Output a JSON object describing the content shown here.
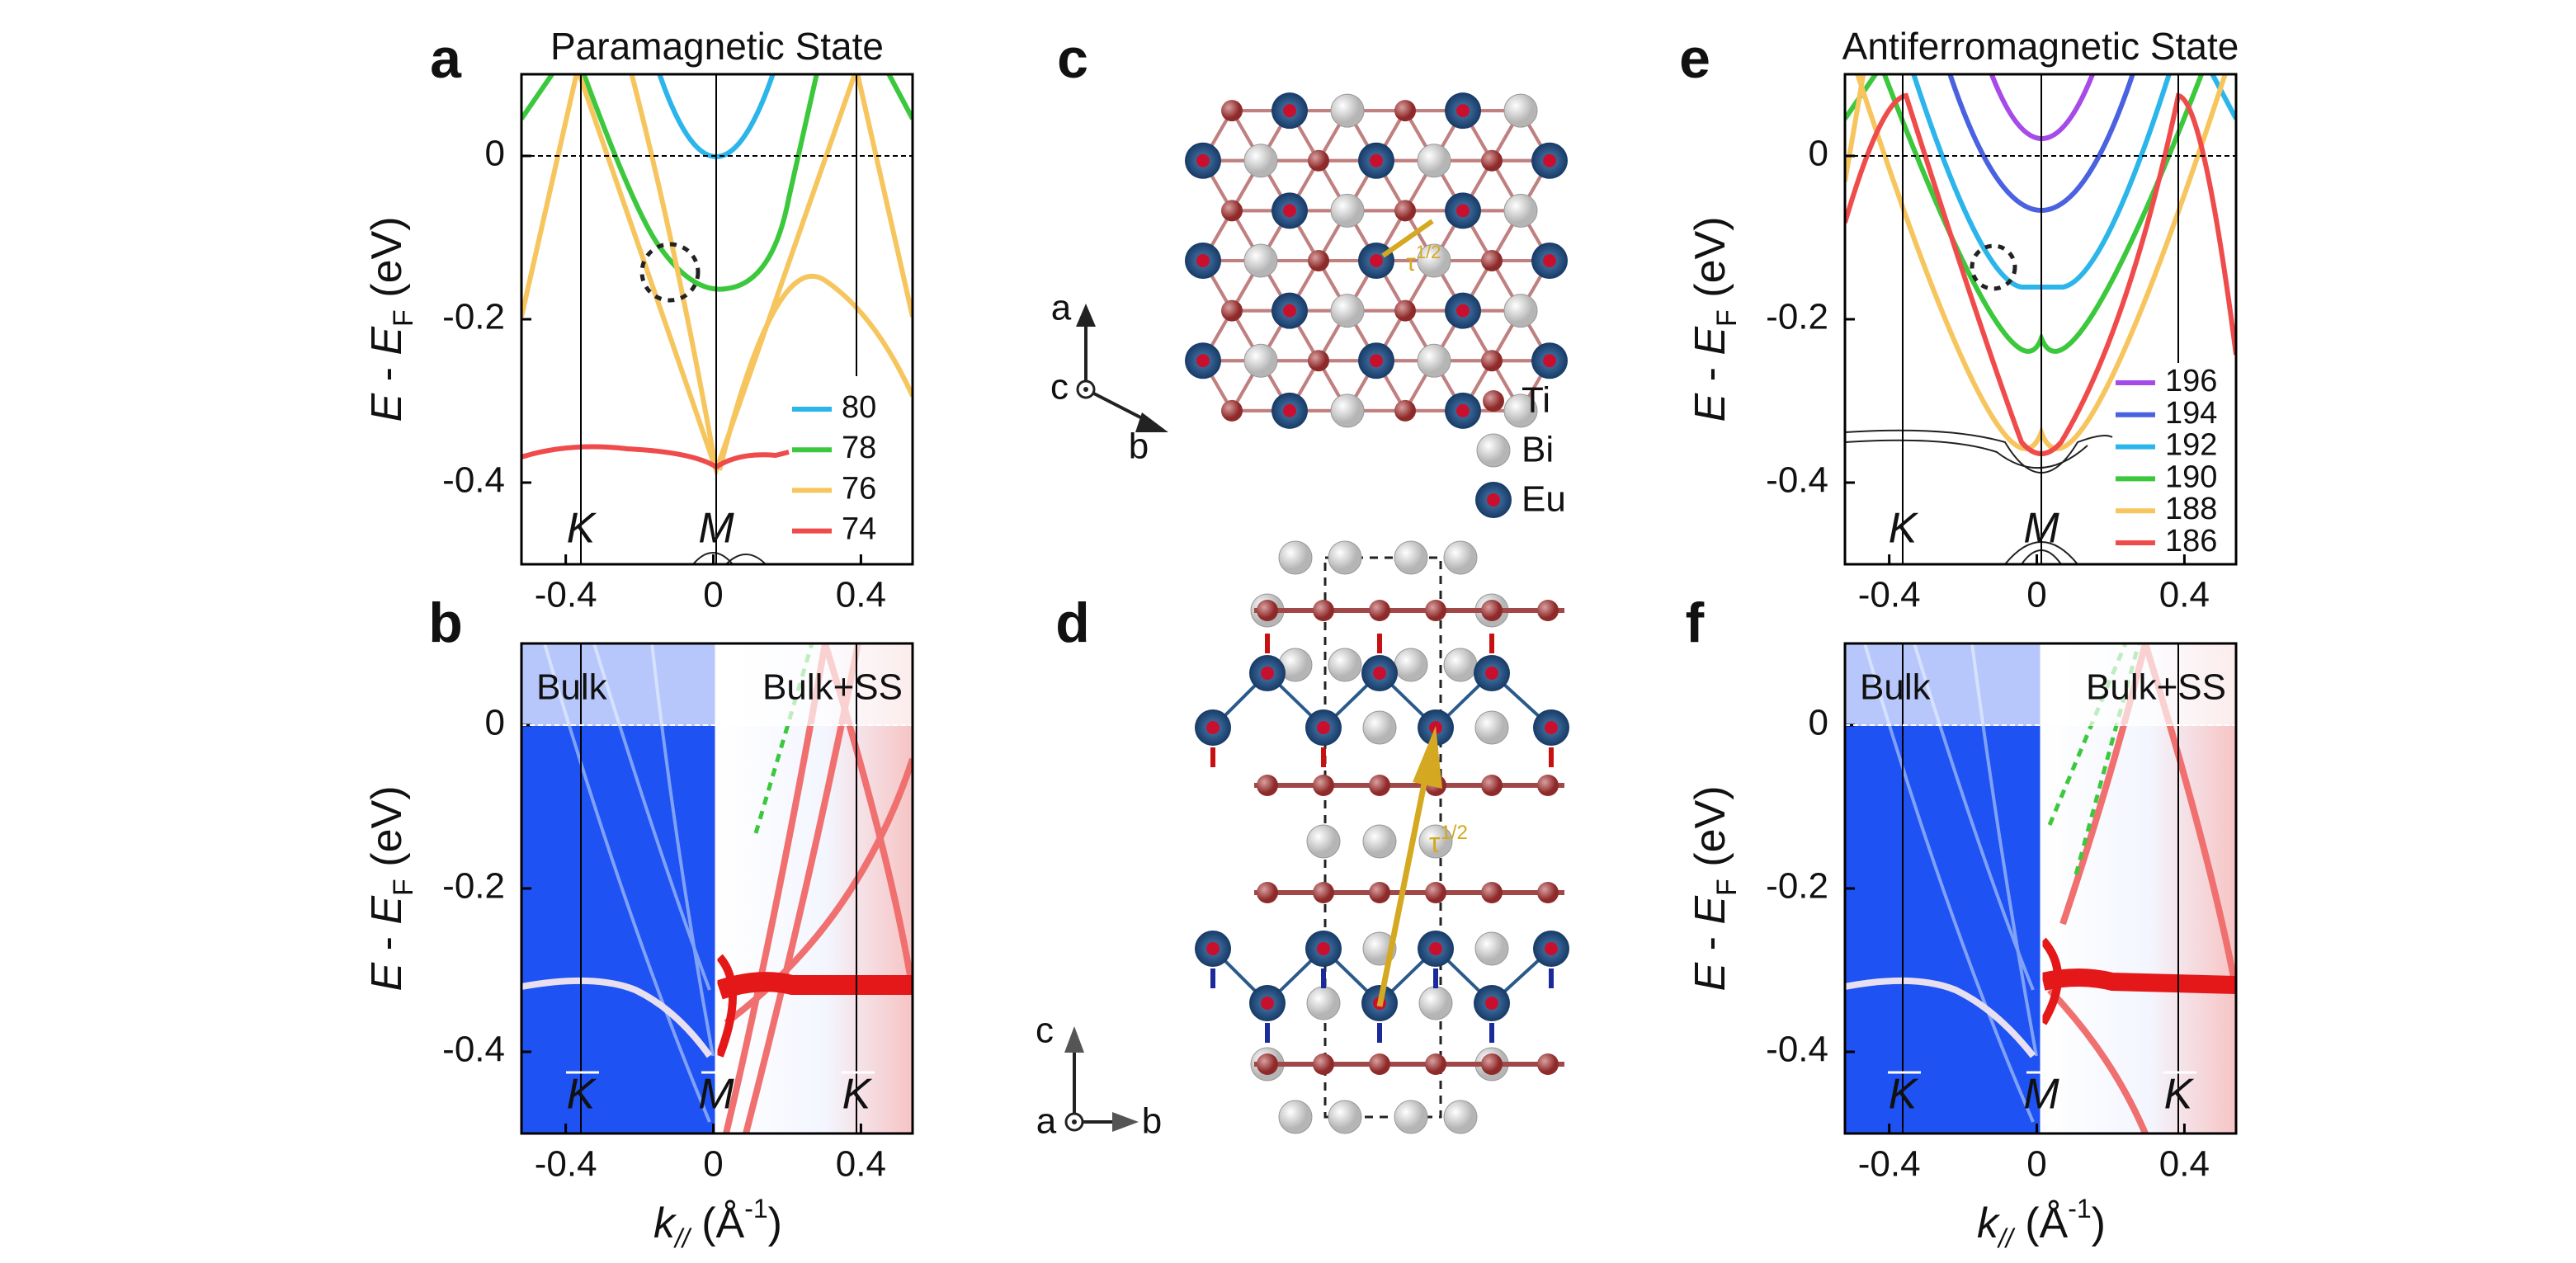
{
  "figure": {
    "panel_labels": [
      "a",
      "b",
      "c",
      "d",
      "e",
      "f"
    ],
    "a": {
      "title": "Paramagnetic State",
      "xlim": [
        -0.52,
        0.54
      ],
      "ylim": [
        -0.5,
        0.1
      ],
      "xticks": [
        -0.4,
        0,
        0.4
      ],
      "yticks": [
        0,
        -0.2,
        -0.4
      ],
      "points": [
        "K",
        "M"
      ],
      "legend": [
        {
          "name": "80",
          "color": "#2bb5ea"
        },
        {
          "name": "78",
          "color": "#3cc83c"
        },
        {
          "name": "76",
          "color": "#f6c55e"
        },
        {
          "name": "74",
          "color": "#f04b4b"
        }
      ]
    },
    "b": {
      "xlim": [
        -0.52,
        0.54
      ],
      "ylim": [
        -0.5,
        0.1
      ],
      "xticks": [
        -0.4,
        0,
        0.4
      ],
      "yticks": [
        0,
        -0.2,
        -0.4
      ],
      "points": [
        "K",
        "M",
        "K"
      ],
      "regions": [
        "Bulk",
        "Bulk+SS"
      ]
    },
    "e": {
      "title": "Antiferromagnetic State",
      "xlim": [
        -0.52,
        0.54
      ],
      "ylim": [
        -0.5,
        0.1
      ],
      "xticks": [
        -0.4,
        0,
        0.4
      ],
      "yticks": [
        0,
        -0.2,
        -0.4
      ],
      "points": [
        "K",
        "M"
      ],
      "legend": [
        {
          "name": "196",
          "color": "#a64ae8"
        },
        {
          "name": "194",
          "color": "#4a62e0"
        },
        {
          "name": "192",
          "color": "#2bb5ea"
        },
        {
          "name": "190",
          "color": "#3cc83c"
        },
        {
          "name": "188",
          "color": "#f6c55e"
        },
        {
          "name": "186",
          "color": "#f04b4b"
        }
      ]
    },
    "f": {
      "xlim": [
        -0.52,
        0.54
      ],
      "ylim": [
        -0.5,
        0.1
      ],
      "xticks": [
        -0.4,
        0,
        0.4
      ],
      "yticks": [
        0,
        -0.2,
        -0.4
      ],
      "points": [
        "K",
        "M",
        "K"
      ],
      "regions": [
        "Bulk",
        "Bulk+SS"
      ]
    },
    "ylabel": [
      "E",
      " - ",
      "E",
      "F",
      " (eV)"
    ],
    "xlabel": [
      "k",
      "//",
      " (Å",
      "-1",
      ")"
    ],
    "crystal_legend": [
      "Ti",
      "Bi",
      "Eu"
    ],
    "axes_c": [
      "a",
      "c",
      "b"
    ],
    "axes_d": [
      "c",
      "a",
      "b"
    ],
    "tau": [
      "τ",
      "1/2"
    ]
  }
}
